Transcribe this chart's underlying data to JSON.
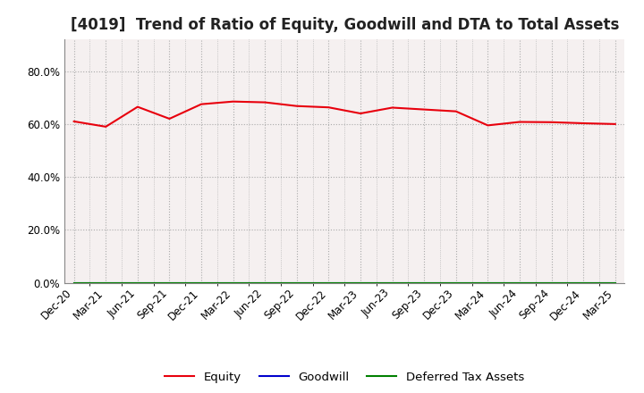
{
  "title": "[4019]  Trend of Ratio of Equity, Goodwill and DTA to Total Assets",
  "x_labels": [
    "Dec-20",
    "Mar-21",
    "Jun-21",
    "Sep-21",
    "Dec-21",
    "Mar-22",
    "Jun-22",
    "Sep-22",
    "Dec-22",
    "Mar-23",
    "Jun-23",
    "Sep-23",
    "Dec-23",
    "Mar-24",
    "Jun-24",
    "Sep-24",
    "Dec-24",
    "Mar-25"
  ],
  "equity": [
    0.61,
    0.59,
    0.665,
    0.62,
    0.675,
    0.685,
    0.682,
    0.668,
    0.663,
    0.64,
    0.662,
    0.655,
    0.648,
    0.595,
    0.608,
    0.607,
    0.603,
    0.6
  ],
  "goodwill": [
    0.0,
    0.0,
    0.0,
    0.0,
    0.0,
    0.0,
    0.0,
    0.0,
    0.0,
    0.0,
    0.0,
    0.0,
    0.0,
    0.0,
    0.0,
    0.0,
    0.0,
    0.0
  ],
  "dta": [
    0.0,
    0.0,
    0.0,
    0.0,
    0.0,
    0.0,
    0.0,
    0.0,
    0.0,
    0.0,
    0.0,
    0.0,
    0.0,
    0.0,
    0.0,
    0.0,
    0.0,
    0.0
  ],
  "equity_color": "#e8000d",
  "goodwill_color": "#0000cd",
  "dta_color": "#008000",
  "background_color": "#ffffff",
  "plot_bg_color": "#f5f0f0",
  "grid_color": "#aaaaaa",
  "ylim": [
    0.0,
    0.92
  ],
  "yticks": [
    0.0,
    0.2,
    0.4,
    0.6,
    0.8
  ],
  "legend_labels": [
    "Equity",
    "Goodwill",
    "Deferred Tax Assets"
  ],
  "title_fontsize": 12,
  "tick_fontsize": 8.5,
  "legend_fontsize": 9.5
}
